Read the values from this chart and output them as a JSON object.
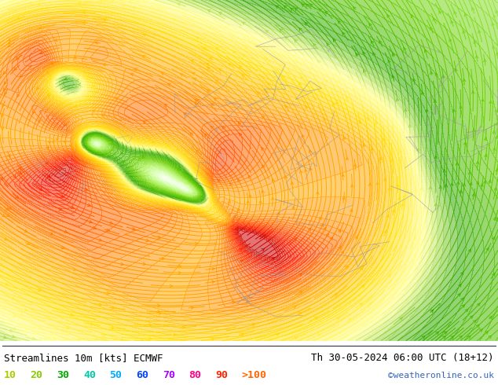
{
  "title_left": "Streamlines 10m [kts] ECMWF",
  "title_right": "Th 30-05-2024 06:00 UTC (18+12)",
  "credit": "©weatheronline.co.uk",
  "legend_values": [
    "10",
    "20",
    "30",
    "40",
    "50",
    "60",
    "70",
    "80",
    "90",
    ">100"
  ],
  "legend_colors": [
    "#aacc00",
    "#88cc00",
    "#00aa00",
    "#00ccaa",
    "#00aaff",
    "#0044ff",
    "#aa00ff",
    "#ff0088",
    "#ff2200",
    "#ff6600"
  ],
  "bg_color": "#ffffff",
  "figsize": [
    6.34,
    4.9
  ],
  "dpi": 100,
  "wind_cmap": [
    [
      0.0,
      "#ffffff"
    ],
    [
      0.08,
      "#e8ffd0"
    ],
    [
      0.15,
      "#ccff99"
    ],
    [
      0.25,
      "#aaee55"
    ],
    [
      0.35,
      "#66cc00"
    ],
    [
      0.45,
      "#33aa00"
    ],
    [
      0.52,
      "#ffff88"
    ],
    [
      0.6,
      "#ffdd00"
    ],
    [
      0.7,
      "#ffaa00"
    ],
    [
      0.8,
      "#ff6600"
    ],
    [
      0.9,
      "#ff2200"
    ],
    [
      1.0,
      "#cc0000"
    ]
  ]
}
